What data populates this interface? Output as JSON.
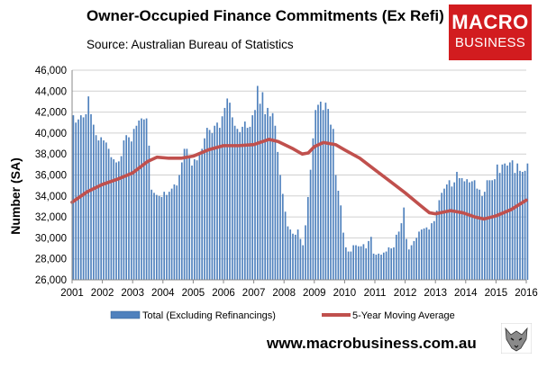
{
  "chart_data": {
    "type": "bar",
    "title": "Owner-Occupied Finance Commitments (Ex Refi)",
    "subtitle": "Source: Australian  Bureau of Statistics",
    "ylabel": "Number (SA)",
    "xlabel": "",
    "ylim": [
      26000,
      46000
    ],
    "y_ticks": [
      "26,000",
      "28,000",
      "30,000",
      "32,000",
      "34,000",
      "36,000",
      "38,000",
      "40,000",
      "42,000",
      "44,000",
      "46,000"
    ],
    "x_ticks": [
      "2001",
      "2002",
      "2003",
      "2004",
      "2005",
      "2006",
      "2007",
      "2008",
      "2009",
      "2010",
      "2011",
      "2012",
      "2013",
      "2014",
      "2015",
      "2016"
    ],
    "x_range": [
      2001,
      2016
    ],
    "grid": "horizontal",
    "legend_position": "bottom",
    "series": [
      {
        "name": "Total (Excluding Refinancings)",
        "type": "bar",
        "color": "#4f81bd",
        "interval": "monthly",
        "start": "2001-01",
        "values": [
          41700,
          41000,
          41300,
          41700,
          41500,
          41800,
          43500,
          41800,
          40800,
          39800,
          39300,
          39600,
          39300,
          39100,
          38500,
          37700,
          37500,
          37200,
          37300,
          37800,
          39300,
          39800,
          39600,
          39200,
          40400,
          40700,
          41200,
          41400,
          41300,
          41400,
          38800,
          34600,
          34300,
          34100,
          34000,
          33900,
          34400,
          34100,
          34400,
          34700,
          35100,
          35000,
          36000,
          37200,
          38500,
          38500,
          37700,
          36900,
          37500,
          37400,
          38000,
          38500,
          39500,
          40500,
          40300,
          40000,
          40700,
          41000,
          40500,
          41600,
          42400,
          43300,
          42900,
          41500,
          40700,
          40400,
          40100,
          40600,
          41100,
          40500,
          40600,
          41700,
          42200,
          44500,
          42800,
          43900,
          41800,
          42400,
          41600,
          41900,
          40700,
          38200,
          36000,
          34200,
          32500,
          31100,
          30800,
          30400,
          30300,
          30800,
          29900,
          29300,
          31200,
          33900,
          36500,
          39500,
          42200,
          42700,
          43000,
          42200,
          42900,
          42300,
          40800,
          40400,
          36000,
          34500,
          33100,
          30500,
          29100,
          28700,
          28700,
          29300,
          29300,
          29200,
          29200,
          29400,
          29000,
          29700,
          30100,
          28500,
          28400,
          28500,
          28400,
          28600,
          28700,
          29100,
          29000,
          29100,
          30300,
          30600,
          31400,
          32900,
          29900,
          28900,
          29300,
          29700,
          30000,
          30600,
          30800,
          30900,
          31000,
          30800,
          31400,
          31600,
          32600,
          33600,
          34300,
          34700,
          35100,
          35500,
          34900,
          35300,
          36300,
          35700,
          35700,
          35400,
          35600,
          35300,
          35400,
          35500,
          34700,
          34600,
          34000,
          34400,
          35500,
          35500,
          35500,
          35600,
          37000,
          36200,
          37000,
          37100,
          36900,
          37200,
          37400,
          36200,
          37100,
          36400,
          36300,
          36400,
          37100
        ]
      },
      {
        "name": "5-Year Moving Average",
        "type": "line",
        "color": "#c0504d",
        "points": [
          [
            2001.0,
            33400
          ],
          [
            2001.5,
            34400
          ],
          [
            2002.0,
            35100
          ],
          [
            2002.5,
            35600
          ],
          [
            2003.0,
            36200
          ],
          [
            2003.5,
            37300
          ],
          [
            2003.8,
            37700
          ],
          [
            2004.2,
            37600
          ],
          [
            2004.6,
            37600
          ],
          [
            2005.0,
            37800
          ],
          [
            2005.5,
            38400
          ],
          [
            2006.0,
            38800
          ],
          [
            2006.5,
            38800
          ],
          [
            2007.0,
            38900
          ],
          [
            2007.5,
            39400
          ],
          [
            2007.8,
            39200
          ],
          [
            2008.3,
            38500
          ],
          [
            2008.6,
            38000
          ],
          [
            2008.8,
            38100
          ],
          [
            2009.0,
            38700
          ],
          [
            2009.3,
            39100
          ],
          [
            2009.7,
            38900
          ],
          [
            2010.0,
            38400
          ],
          [
            2010.5,
            37600
          ],
          [
            2011.0,
            36500
          ],
          [
            2011.5,
            35400
          ],
          [
            2012.0,
            34300
          ],
          [
            2012.5,
            33100
          ],
          [
            2012.8,
            32400
          ],
          [
            2013.0,
            32300
          ],
          [
            2013.5,
            32600
          ],
          [
            2013.9,
            32400
          ],
          [
            2014.3,
            32000
          ],
          [
            2014.6,
            31800
          ],
          [
            2015.0,
            32100
          ],
          [
            2015.5,
            32700
          ],
          [
            2016.0,
            33600
          ]
        ]
      }
    ]
  },
  "logo": {
    "line1": "MACRO",
    "line2": "BUSINESS"
  },
  "footer": {
    "url": "www.macrobusiness.com.au"
  },
  "wolf_icon": "wolf-logo-icon",
  "colors": {
    "bar": "#4f81bd",
    "line": "#c0504d",
    "logo_bg": "#d21c1f"
  }
}
